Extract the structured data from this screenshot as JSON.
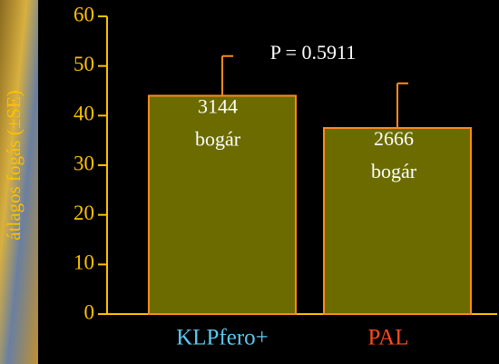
{
  "chart_data": {
    "type": "bar",
    "y_label": "átlagos fogás (±SE)",
    "categories": [
      "KLPfero+",
      "PAL"
    ],
    "category_colors": [
      "#5cc8f0",
      "#ff4a1a"
    ],
    "values": [
      44,
      37.5
    ],
    "errors": [
      8,
      9
    ],
    "color": "#6b6b00",
    "edge_color": "#ff8a1a",
    "bar_labels": [
      [
        "3144",
        "bogár"
      ],
      [
        "2666",
        "bogár"
      ]
    ],
    "annotation": "P = 0.5911",
    "ylim": [
      0,
      60
    ],
    "yticks": [
      0,
      10,
      20,
      30,
      40,
      50,
      60
    ],
    "axis_color": "#ffc000"
  }
}
